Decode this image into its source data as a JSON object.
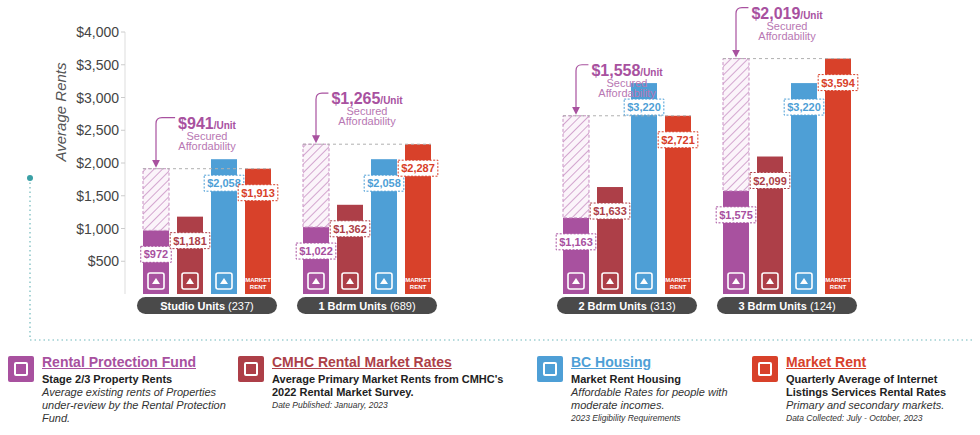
{
  "chart_data": {
    "type": "bar",
    "y_label": "Average Rents",
    "categories": [
      "Studio Units (237)",
      "1 Bdrm Units (689)",
      "2 Bdrm Units (313)",
      "3 Bdrm Units (124)"
    ],
    "series": [
      {
        "name": "Rental Protection Fund",
        "color": "#a8519f",
        "values": [
          972,
          1022,
          1163,
          1575
        ],
        "value_labels": [
          "$972",
          "$1,022",
          "$1,163",
          "$1,575"
        ],
        "subtitle": "Stage 2/3 Property Rents",
        "description": "Average existing rents of Properties under-review by the Rental Protection Fund."
      },
      {
        "name": "CMHC Rental Market Rates",
        "color": "#ad3f48",
        "values": [
          1181,
          1362,
          1633,
          2099
        ],
        "value_labels": [
          "$1,181",
          "$1,362",
          "$1,633",
          "$2,099"
        ],
        "subtitle": "Average Primary Market Rents from CMHC's 2022 Rental Market Survey.",
        "note": "Date Published: January, 2023"
      },
      {
        "name": "BC Housing",
        "color": "#4e9fd6",
        "values": [
          2058,
          2058,
          3220,
          3220
        ],
        "value_labels": [
          "$2,058",
          "$2,058",
          "$3,220",
          "$3,220"
        ],
        "subtitle": "Market Rent Housing",
        "description": "Affordable Rates for people with moderate incomes.",
        "note": "2023 Eligibility Requirements"
      },
      {
        "name": "Market Rent",
        "color": "#d8412a",
        "values": [
          1913,
          2287,
          2721,
          3594
        ],
        "value_labels": [
          "$1,913",
          "$2,287",
          "$2,721",
          "$3,594"
        ],
        "subtitle": "Quarterly Average of Internet Listings Services Rental Rates",
        "description": "Primary and secondary markets.",
        "note": "Data Collected: July - October, 2023",
        "icon_label": "MARKET RENT"
      }
    ],
    "secured_affordability": {
      "values": [
        941,
        1265,
        1558,
        2019
      ],
      "value_labels": [
        "$941",
        "$1,265",
        "$1,558",
        "$2,019"
      ],
      "suffix": "/Unit",
      "label": "Secured Affordability"
    },
    "ylim": [
      0,
      4000
    ],
    "yticks": [
      {
        "value": 500,
        "label": "$500"
      },
      {
        "value": 1000,
        "label": "$1,000"
      },
      {
        "value": 1500,
        "label": "$1,500"
      },
      {
        "value": 2000,
        "label": "$2,000"
      },
      {
        "value": 2500,
        "label": "$2,500"
      },
      {
        "value": 3000,
        "label": "$3,000"
      },
      {
        "value": 3500,
        "label": "$3,500"
      },
      {
        "value": 4000,
        "label": "$4,000"
      }
    ],
    "grid": false,
    "data_labels": true
  }
}
